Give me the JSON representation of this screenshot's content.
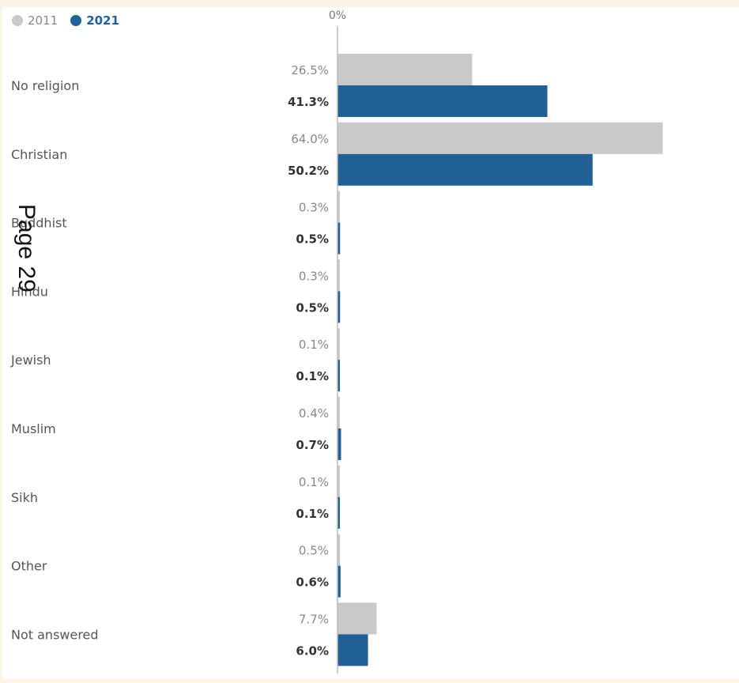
{
  "legend": {
    "items": [
      {
        "label": "2011",
        "color": "#c9c9c9"
      },
      {
        "label": "2021",
        "color": "#206095"
      }
    ]
  },
  "stamp": {
    "text": "Page 29"
  },
  "chart_data": {
    "type": "bar",
    "orientation": "horizontal",
    "title": "",
    "xlabel": "",
    "ylabel": "",
    "xlim": [
      0,
      70
    ],
    "axis_tick_label": "0%",
    "categories": [
      "No religion",
      "Christian",
      "Buddhist",
      "Hindu",
      "Jewish",
      "Muslim",
      "Sikh",
      "Other",
      "Not answered"
    ],
    "series": [
      {
        "name": "2011",
        "color": "#c9c9c9",
        "values": [
          26.5,
          64.0,
          0.3,
          0.3,
          0.1,
          0.4,
          0.1,
          0.5,
          7.7
        ],
        "labels": [
          "26.5%",
          "64.0%",
          "0.3%",
          "0.3%",
          "0.1%",
          "0.4%",
          "0.1%",
          "0.5%",
          "7.7%"
        ]
      },
      {
        "name": "2021",
        "color": "#206095",
        "values": [
          41.3,
          50.2,
          0.5,
          0.5,
          0.1,
          0.7,
          0.1,
          0.6,
          6.0
        ],
        "labels": [
          "41.3%",
          "50.2%",
          "0.5%",
          "0.5%",
          "0.1%",
          "0.7%",
          "0.1%",
          "0.6%",
          "6.0%"
        ]
      }
    ],
    "legend_position": "top-left",
    "grid": false
  }
}
